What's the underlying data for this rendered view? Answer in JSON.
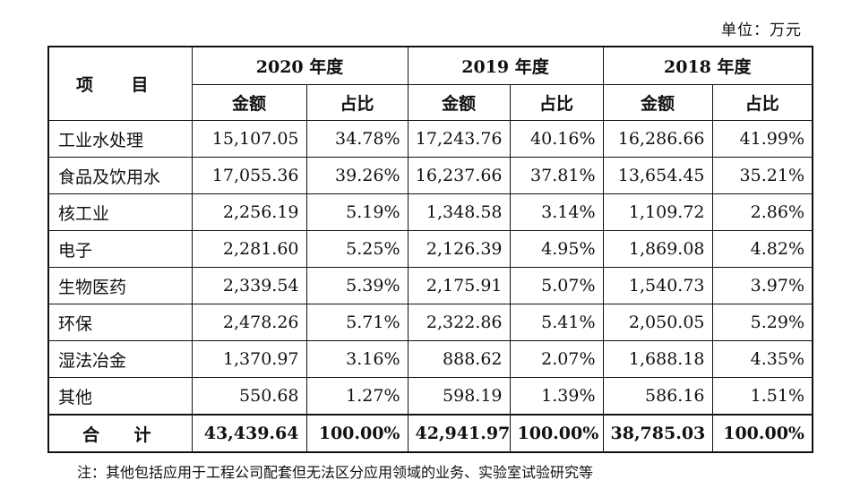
{
  "unit_label": "单位：万元",
  "table": {
    "corner_header": "项 目",
    "years": [
      "2020 年度",
      "2019 年度",
      "2018 年度"
    ],
    "sub_headers": [
      "金额",
      "占比"
    ],
    "rows": [
      {
        "name": "工业水处理",
        "cells": [
          "15,107.05",
          "34.78%",
          "17,243.76",
          "40.16%",
          "16,286.66",
          "41.99%"
        ]
      },
      {
        "name": "食品及饮用水",
        "cells": [
          "17,055.36",
          "39.26%",
          "16,237.66",
          "37.81%",
          "13,654.45",
          "35.21%"
        ]
      },
      {
        "name": "核工业",
        "cells": [
          "2,256.19",
          "5.19%",
          "1,348.58",
          "3.14%",
          "1,109.72",
          "2.86%"
        ]
      },
      {
        "name": "电子",
        "cells": [
          "2,281.60",
          "5.25%",
          "2,126.39",
          "4.95%",
          "1,869.08",
          "4.82%"
        ]
      },
      {
        "name": "生物医药",
        "cells": [
          "2,339.54",
          "5.39%",
          "2,175.91",
          "5.07%",
          "1,540.73",
          "3.97%"
        ]
      },
      {
        "name": "环保",
        "cells": [
          "2,478.26",
          "5.71%",
          "2,322.86",
          "5.41%",
          "2,050.05",
          "5.29%"
        ]
      },
      {
        "name": "湿法冶金",
        "cells": [
          "1,370.97",
          "3.16%",
          "888.62",
          "2.07%",
          "1,688.18",
          "4.35%"
        ]
      },
      {
        "name": "其他",
        "cells": [
          "550.68",
          "1.27%",
          "598.19",
          "1.39%",
          "586.16",
          "1.51%"
        ]
      }
    ],
    "total": {
      "name": "合 计",
      "cells": [
        "43,439.64",
        "100.00%",
        "42,941.97",
        "100.00%",
        "38,785.03",
        "100.00%"
      ]
    }
  },
  "note": "注：其他包括应用于工程公司配套但无法区分应用领域的业务、实验室试验研究等"
}
